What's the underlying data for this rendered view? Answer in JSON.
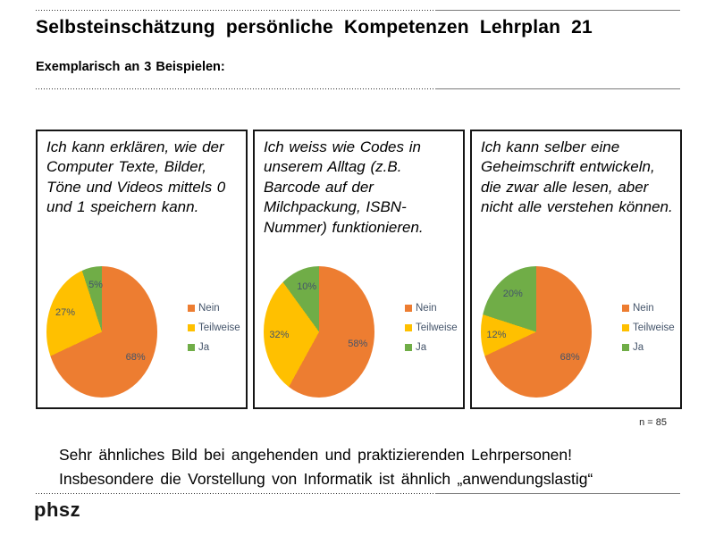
{
  "slide": {
    "title": "Selbsteinschätzung persönliche Kompetenzen Lehrplan 21",
    "subtitle": "Exemplarisch an 3 Beispielen:",
    "sample_size": "n = 85",
    "message_line1": "Sehr ähnliches Bild bei angehenden und praktizierenden Lehrpersonen!",
    "message_line2": "Insbesondere die Vorstellung von Informatik ist ähnlich „anwendungslastig“",
    "logo": "phsz"
  },
  "colors": {
    "nein": "#ED7D31",
    "teilweise": "#FFC000",
    "ja": "#70AD47",
    "chart_text": "#44546A"
  },
  "chart_data": [
    {
      "type": "pie",
      "statement": "Ich kann erklären, wie der Computer Texte, Bilder, Töne und Videos mittels 0 und 1 speichern kann.",
      "categories": [
        "Nein",
        "Teilweise",
        "Ja"
      ],
      "values": [
        68,
        27,
        5
      ],
      "unit": "%",
      "colors": [
        "#ED7D31",
        "#FFC000",
        "#70AD47"
      ],
      "labels": [
        "68%",
        "27%",
        "5%"
      ],
      "legend_position": "right",
      "start_angle": "top, clockwise"
    },
    {
      "type": "pie",
      "statement": "Ich weiss wie Codes in unserem Alltag (z.B. Barcode auf der Milchpackung, ISBN-Nummer) funktionieren.",
      "categories": [
        "Nein",
        "Teilweise",
        "Ja"
      ],
      "values": [
        58,
        32,
        10
      ],
      "unit": "%",
      "colors": [
        "#ED7D31",
        "#FFC000",
        "#70AD47"
      ],
      "labels": [
        "58%",
        "32%",
        "10%"
      ],
      "legend_position": "right",
      "start_angle": "top, clockwise"
    },
    {
      "type": "pie",
      "statement": "Ich kann selber eine Geheimschrift entwickeln, die zwar alle lesen, aber nicht alle verstehen können.",
      "categories": [
        "Nein",
        "Teilweise",
        "Ja"
      ],
      "values": [
        68,
        12,
        20
      ],
      "unit": "%",
      "colors": [
        "#ED7D31",
        "#FFC000",
        "#70AD47"
      ],
      "labels": [
        "68%",
        "12%",
        "20%"
      ],
      "legend_position": "right",
      "start_angle": "top, clockwise"
    }
  ]
}
